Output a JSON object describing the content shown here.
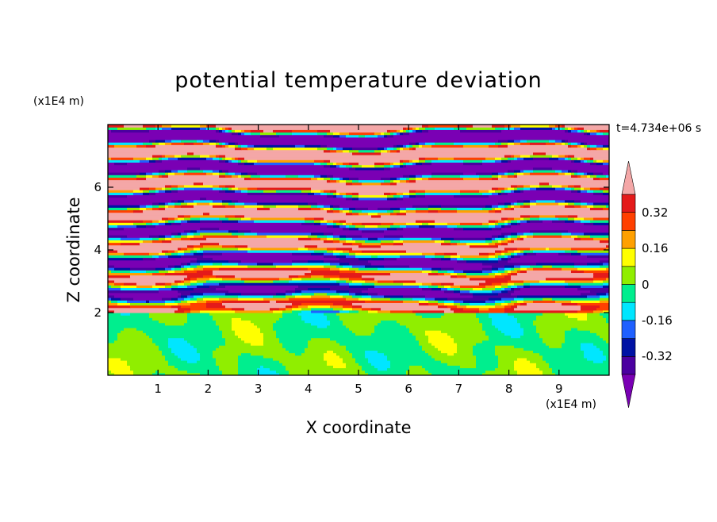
{
  "chart_data": {
    "type": "heatmap",
    "title": "potential temperature deviation",
    "xlabel": "X coordinate",
    "ylabel": "Z coordinate",
    "x_unit": "(x1E4 m)",
    "z_unit": "(x1E4 m)",
    "time_label": "t=4.734e+06 s",
    "xlim": [
      0,
      10
    ],
    "ylim": [
      0,
      8
    ],
    "x_ticks": [
      "1",
      "2",
      "3",
      "4",
      "5",
      "6",
      "7",
      "8",
      "9"
    ],
    "y_ticks": [
      "2",
      "4",
      "6"
    ],
    "colorbar": {
      "levels": [
        -0.4,
        -0.32,
        -0.24,
        -0.16,
        -0.08,
        0,
        0.08,
        0.16,
        0.24,
        0.32,
        0.4
      ],
      "labels": [
        "0.32",
        "0.16",
        "0",
        "-0.16",
        "-0.32"
      ],
      "label_values": [
        0.32,
        0.16,
        0,
        -0.16,
        -0.32
      ],
      "colors": [
        "#7a00b4",
        "#4b00a0",
        "#0012a4",
        "#1f60ff",
        "#00e6ff",
        "#00ee8e",
        "#90ee00",
        "#ffff00",
        "#ffa000",
        "#ff4000",
        "#e41a1a",
        "#f4a7a7"
      ],
      "extend": "both"
    },
    "regions": {
      "lower_mixed_layer_top_z": 2.0,
      "upper_layered_region": [
        2.0,
        8.0
      ]
    }
  }
}
